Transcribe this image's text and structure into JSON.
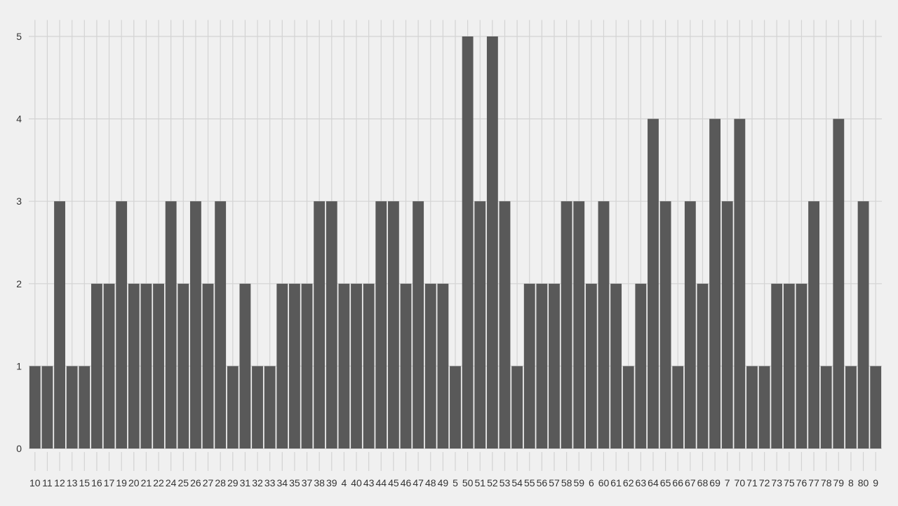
{
  "colors": {
    "background": "#f0f0f0",
    "bar": "#595959",
    "grid": "#d3d3d3",
    "tick_text": "#333333"
  },
  "chart_data": {
    "type": "bar",
    "title": "",
    "xlabel": "",
    "ylabel": "",
    "ylim": [
      0,
      5.2
    ],
    "yticks": [
      0,
      1,
      2,
      3,
      4,
      5
    ],
    "grid": true,
    "legend": "none",
    "categories": [
      "10",
      "11",
      "12",
      "13",
      "15",
      "16",
      "17",
      "19",
      "20",
      "21",
      "22",
      "24",
      "25",
      "26",
      "27",
      "28",
      "29",
      "31",
      "32",
      "33",
      "34",
      "35",
      "37",
      "38",
      "39",
      "4",
      "40",
      "43",
      "44",
      "45",
      "46",
      "47",
      "48",
      "49",
      "5",
      "50",
      "51",
      "52",
      "53",
      "54",
      "55",
      "56",
      "57",
      "58",
      "59",
      "6",
      "60",
      "61",
      "62",
      "63",
      "64",
      "65",
      "66",
      "67",
      "68",
      "69",
      "7",
      "70",
      "71",
      "72",
      "73",
      "75",
      "76",
      "77",
      "78",
      "79",
      "8",
      "80",
      "9"
    ],
    "values": [
      1,
      1,
      3,
      1,
      1,
      2,
      2,
      3,
      2,
      2,
      2,
      3,
      2,
      3,
      2,
      3,
      1,
      2,
      1,
      1,
      2,
      2,
      2,
      3,
      3,
      2,
      2,
      2,
      3,
      3,
      2,
      3,
      2,
      2,
      1,
      5,
      3,
      5,
      3,
      1,
      2,
      2,
      2,
      3,
      3,
      2,
      3,
      2,
      1,
      2,
      4,
      3,
      1,
      3,
      2,
      4,
      3,
      4,
      1,
      1,
      2,
      2,
      2,
      3,
      1,
      4,
      1,
      3,
      1
    ]
  }
}
